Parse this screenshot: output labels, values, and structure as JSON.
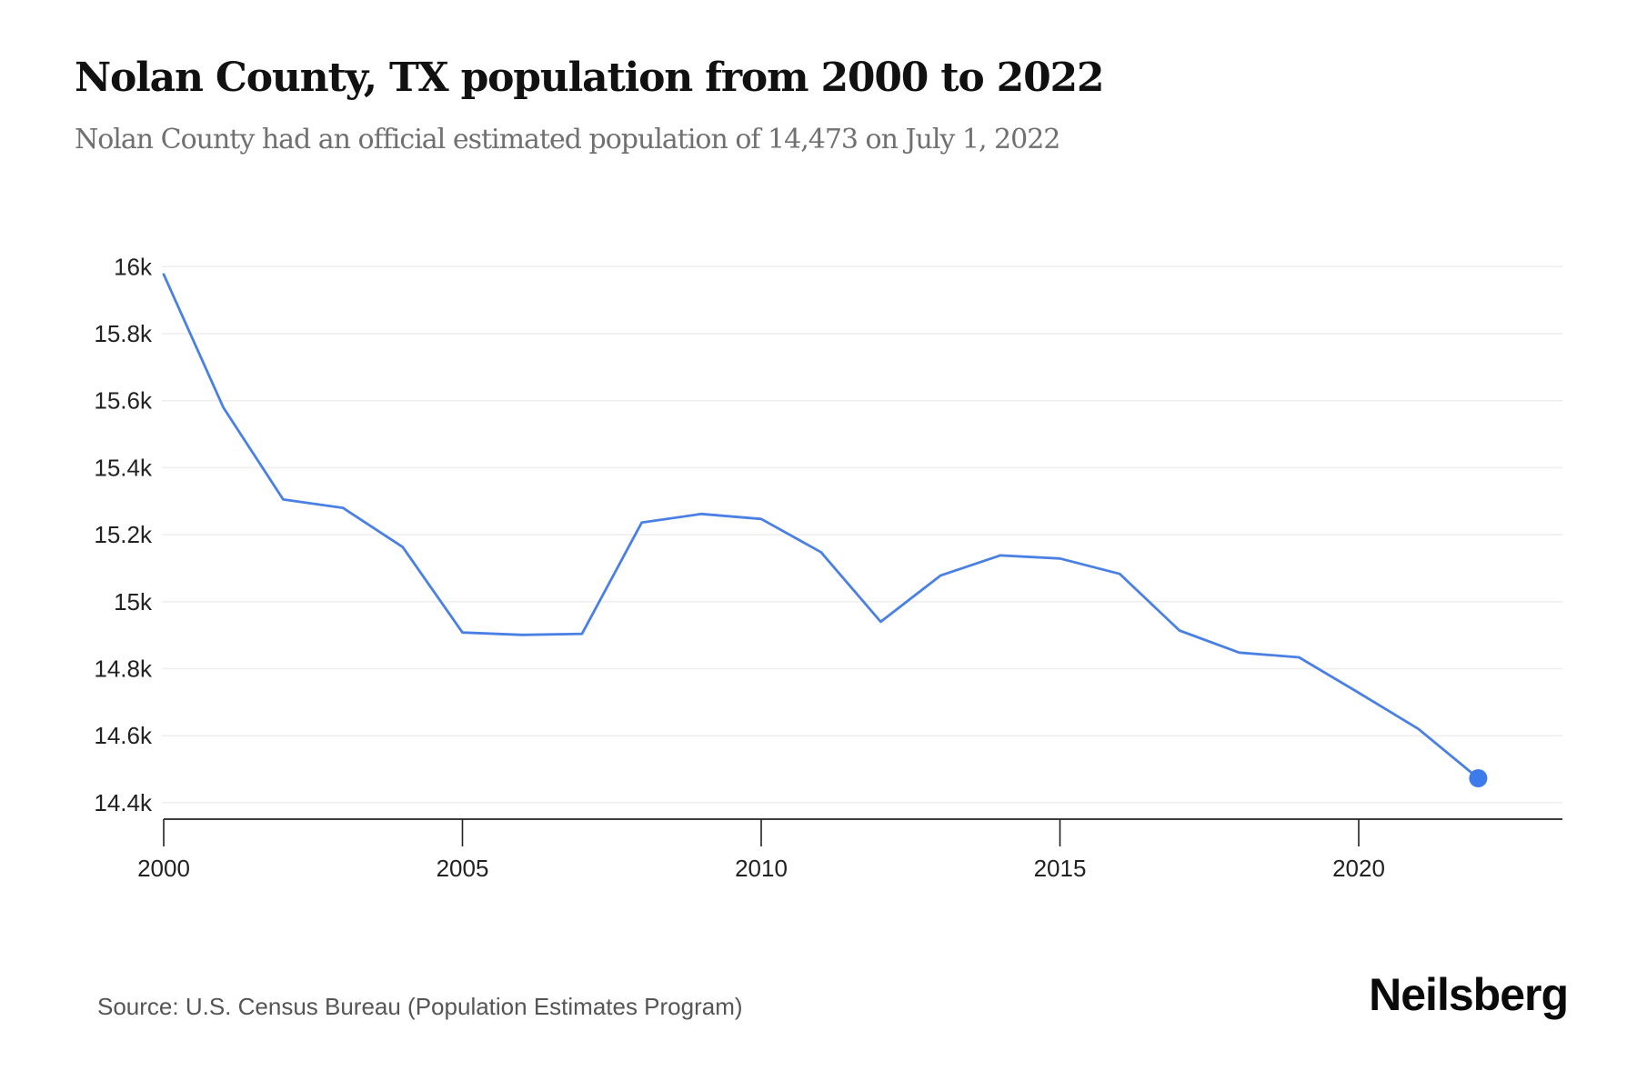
{
  "header": {
    "title": "Nolan County, TX population from 2000 to 2022",
    "subtitle": "Nolan County had an official estimated population of 14,473 on July 1, 2022"
  },
  "footer": {
    "source": "Source: U.S. Census Bureau (Population Estimates Program)",
    "brand": "Neilsberg"
  },
  "colors": {
    "line": "#4a80e4",
    "marker": "#3d7beb",
    "grid": "#eeeeee",
    "axis": "#222222"
  },
  "chart_data": {
    "type": "line",
    "title": "Nolan County, TX population from 2000 to 2022",
    "subtitle": "Nolan County had an official estimated population of 14,473 on July 1, 2022",
    "xlabel": "",
    "ylabel": "",
    "x": [
      2000,
      2001,
      2002,
      2003,
      2004,
      2005,
      2006,
      2007,
      2008,
      2009,
      2010,
      2011,
      2012,
      2013,
      2014,
      2015,
      2016,
      2017,
      2018,
      2019,
      2020,
      2021,
      2022
    ],
    "series": [
      {
        "name": "Population",
        "values": [
          15977,
          15579,
          15305,
          15280,
          15163,
          14908,
          14901,
          14904,
          15236,
          15262,
          15247,
          15148,
          14940,
          15078,
          15138,
          15129,
          15083,
          14914,
          14848,
          14834,
          14728,
          14620,
          14473
        ]
      }
    ],
    "highlight_last_point": true,
    "xlim": [
      2000,
      2023.3
    ],
    "ylim": [
      14350,
      16000
    ],
    "x_ticks": [
      2000,
      2005,
      2010,
      2015,
      2020
    ],
    "x_tick_labels": [
      "2000",
      "2005",
      "2010",
      "2015",
      "2020"
    ],
    "y_ticks": [
      14400,
      14600,
      14800,
      15000,
      15200,
      15400,
      15600,
      15800,
      16000
    ],
    "y_tick_labels": [
      "14.4k",
      "14.6k",
      "14.8k",
      "15k",
      "15.2k",
      "15.4k",
      "15.6k",
      "15.8k",
      "16k"
    ],
    "grid": true,
    "legend": "none",
    "source": "Source: U.S. Census Bureau (Population Estimates Program)"
  }
}
